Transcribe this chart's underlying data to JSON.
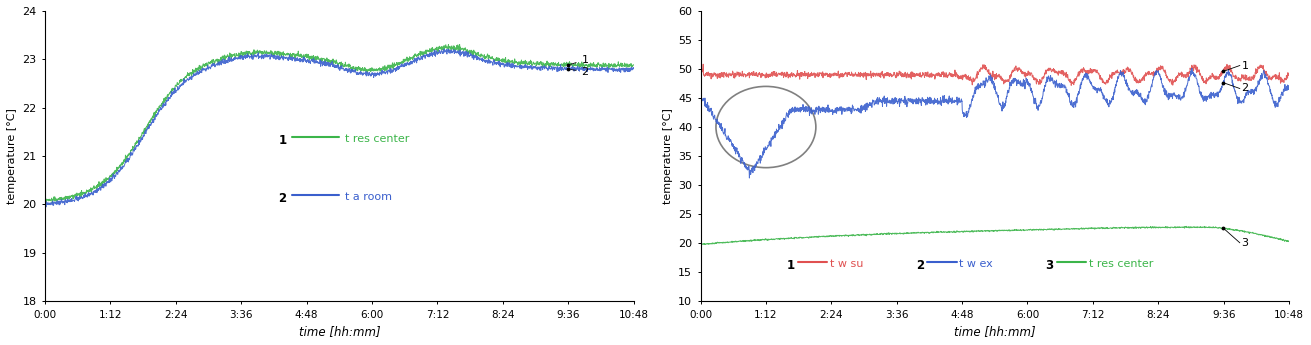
{
  "left": {
    "ylim": [
      18,
      24
    ],
    "yticks": [
      18,
      19,
      20,
      21,
      22,
      23,
      24
    ],
    "ylabel": "temperature [°C]",
    "xlabel": "time [hh:mm]",
    "xtick_labels": [
      "0:00",
      "1:12",
      "2:24",
      "3:36",
      "4:48",
      "6:00",
      "7:12",
      "8:24",
      "9:36",
      "10:48"
    ],
    "line1_color": "#3cb54a",
    "line2_color": "#3a5fcd",
    "legend": [
      {
        "num": "1",
        "color": "#3cb54a",
        "label": "t res center"
      },
      {
        "num": "2",
        "color": "#3a5fcd",
        "label": "t a room"
      }
    ]
  },
  "right": {
    "ylim": [
      10,
      60
    ],
    "yticks": [
      10,
      15,
      20,
      25,
      30,
      35,
      40,
      45,
      50,
      55,
      60
    ],
    "ylabel": "temperature [°C]",
    "xlabel": "time [hh:mm]",
    "xtick_labels": [
      "0:00",
      "1:12",
      "2:24",
      "3:36",
      "4:48",
      "6:00",
      "7:12",
      "8:24",
      "9:36",
      "10:48"
    ],
    "line1_color": "#e05050",
    "line2_color": "#3a5fcd",
    "line3_color": "#3cb54a",
    "legend": [
      {
        "num": "1",
        "color": "#e05050",
        "label": "t w su"
      },
      {
        "num": "2",
        "color": "#3a5fcd",
        "label": "t w ex"
      },
      {
        "num": "3",
        "color": "#3cb54a",
        "label": "t res center"
      }
    ]
  }
}
